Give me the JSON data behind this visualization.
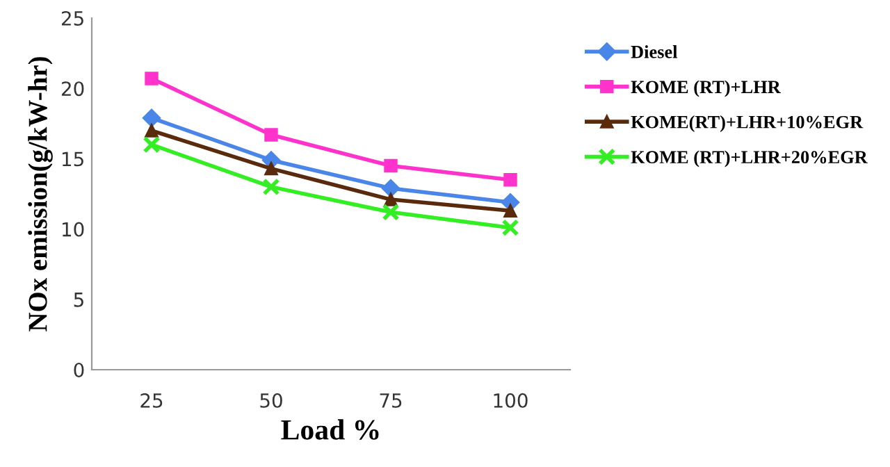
{
  "chart_data": {
    "type": "line",
    "xlabel": "Load %",
    "ylabel": "NOx emission(g/kW-hr)",
    "categories": [
      "25",
      "50",
      "75",
      "100"
    ],
    "series": [
      {
        "name": "Diesel",
        "color": "#4a86e8",
        "marker": "diamond",
        "values": [
          17.9,
          14.9,
          12.9,
          11.9
        ]
      },
      {
        "name": "KOME (RT)+LHR",
        "color": "#ff33cc",
        "marker": "square",
        "values": [
          20.7,
          16.7,
          14.5,
          13.5
        ]
      },
      {
        "name": "KOME(RT)+LHR+10%EGR",
        "color": "#5a2a0c",
        "marker": "triangle",
        "values": [
          17.0,
          14.3,
          12.1,
          11.3
        ]
      },
      {
        "name": "KOME (RT)+LHR+20%EGR",
        "color": "#33ee22",
        "marker": "cross",
        "values": [
          16.0,
          13.0,
          11.2,
          10.1
        ]
      }
    ],
    "ylim": [
      0,
      25
    ],
    "yticks": [
      0,
      5,
      10,
      15,
      20,
      25
    ],
    "grid": false,
    "legend": "top right",
    "line_style": "solid"
  }
}
